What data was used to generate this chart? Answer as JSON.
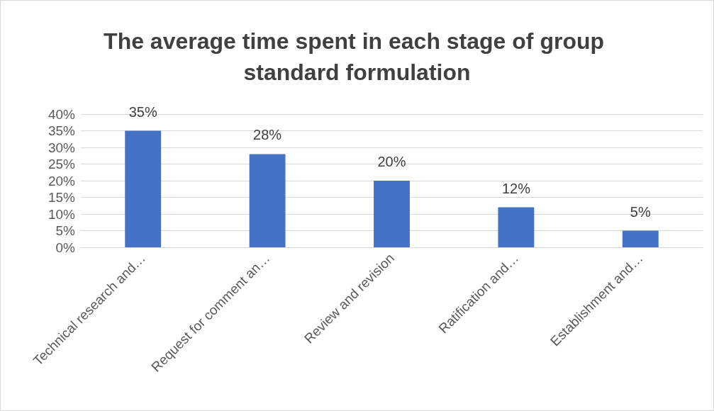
{
  "chart_data": {
    "type": "bar",
    "title": "The average time spent in each stage of group standard formulation",
    "categories": [
      "Technical research and…",
      "Request for comment an…",
      "Review and revision",
      "Ratification and…",
      "Establishment and…"
    ],
    "values": [
      35,
      28,
      20,
      12,
      5
    ],
    "value_labels": [
      "35%",
      "28%",
      "20%",
      "12%",
      "5%"
    ],
    "color": "#4472c4",
    "ylim": [
      0,
      40
    ],
    "yticks": [
      {
        "value": 0,
        "label": "0%"
      },
      {
        "value": 5,
        "label": "5%"
      },
      {
        "value": 10,
        "label": "10%"
      },
      {
        "value": 15,
        "label": "15%"
      },
      {
        "value": 20,
        "label": "20%"
      },
      {
        "value": 25,
        "label": "25%"
      },
      {
        "value": 30,
        "label": "30%"
      },
      {
        "value": 35,
        "label": "35%"
      },
      {
        "value": 40,
        "label": "40%"
      }
    ],
    "grid": "y"
  }
}
